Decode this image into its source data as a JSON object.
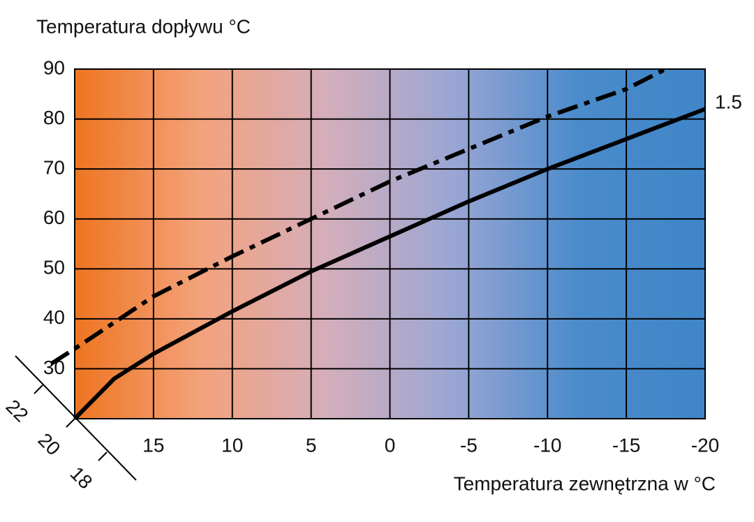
{
  "chart_data": {
    "type": "line",
    "y_axis_label": "Temperatura dopływu  °C",
    "x_axis_label": "Temperatura zewnętrzna w °C",
    "xlim": [
      20,
      -20
    ],
    "xticks": [
      15,
      10,
      5,
      0,
      -5,
      -10,
      -15,
      -20
    ],
    "ylim": [
      20,
      90
    ],
    "yticks": [
      30,
      40,
      50,
      60,
      70,
      80,
      90
    ],
    "grid": true,
    "background_colors": [
      "#ee7521",
      "#f3a27c",
      "#d4aebb",
      "#9aa6d4",
      "#4a8bcb",
      "#3f86c8"
    ],
    "room_temperature_ticks": [
      22,
      20,
      18
    ],
    "series": [
      {
        "name": "1.5",
        "color": "#000000",
        "style": "solid",
        "x": [
          20,
          17.5,
          15,
          10,
          5,
          0,
          -5,
          -10,
          -15,
          -20
        ],
        "values": [
          20,
          28,
          33,
          41.5,
          49.5,
          56.5,
          63.5,
          70,
          76,
          82
        ]
      },
      {
        "color": "#000000",
        "style": "dashdot",
        "x": [
          21.5,
          20,
          15,
          10,
          5,
          0,
          -5,
          -10,
          -15,
          -17.5
        ],
        "values": [
          31,
          34,
          44.5,
          52.5,
          60,
          67.5,
          74,
          80.5,
          86,
          90
        ]
      }
    ]
  }
}
